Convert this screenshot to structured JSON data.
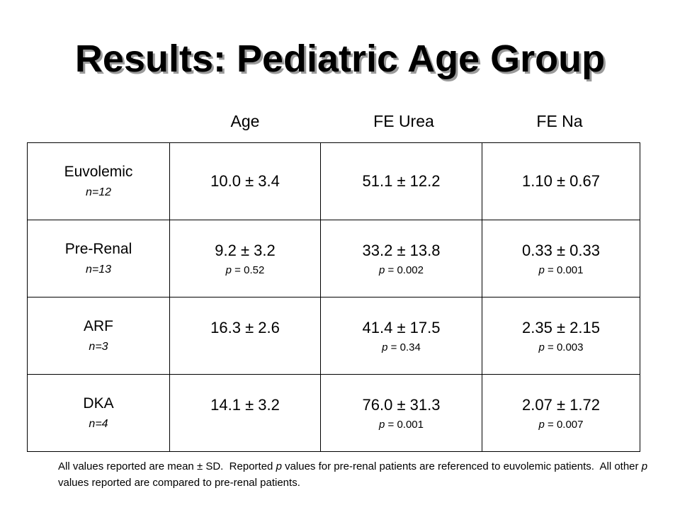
{
  "title": "Results: Pediatric Age Group",
  "columns": [
    "Age",
    "FE Urea",
    "FE Na"
  ],
  "rows": [
    {
      "label": "Euvolemic",
      "n": "n=12",
      "cells": [
        {
          "value": "10.0 ± 3.4",
          "p": ""
        },
        {
          "value": "51.1 ± 12.2",
          "p": ""
        },
        {
          "value": "1.10 ± 0.67",
          "p": ""
        }
      ]
    },
    {
      "label": "Pre-Renal",
      "n": "n=13",
      "cells": [
        {
          "value": "9.2 ± 3.2",
          "p": "p = 0.52"
        },
        {
          "value": "33.2 ± 13.8",
          "p": "p = 0.002"
        },
        {
          "value": "0.33 ± 0.33",
          "p": "p = 0.001"
        }
      ]
    },
    {
      "label": "ARF",
      "n": "n=3",
      "cells": [
        {
          "value": "16.3 ± 2.6",
          "p": ""
        },
        {
          "value": "41.4 ± 17.5",
          "p": "p = 0.34"
        },
        {
          "value": "2.35 ± 2.15",
          "p": "p = 0.003"
        }
      ]
    },
    {
      "label": "DKA",
      "n": "n=4",
      "cells": [
        {
          "value": "14.1 ± 3.2",
          "p": ""
        },
        {
          "value": "76.0 ± 31.3",
          "p": "p = 0.001"
        },
        {
          "value": "2.07 ± 1.72",
          "p": "p = 0.007"
        }
      ]
    }
  ],
  "footnote": "All values reported are mean ± SD.  Reported p values for pre-renal patients are referenced to euvolemic patients.  All other p values reported are compared to pre-renal patients."
}
